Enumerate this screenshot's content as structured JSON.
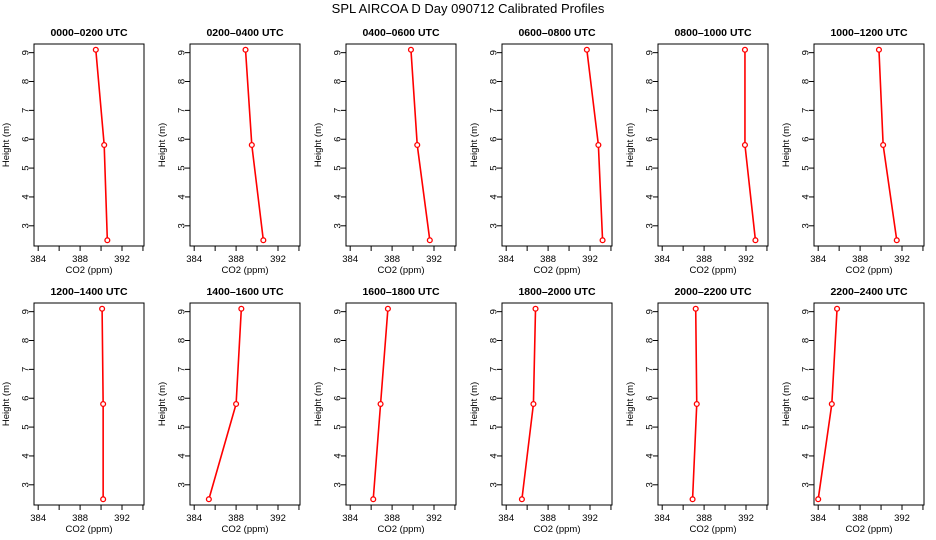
{
  "title": "SPL AIRCOA D  Day 090712  Calibrated Profiles",
  "chart_data": [
    {
      "type": "line",
      "title": "0000–0200 UTC",
      "x": [
        389.5,
        390.3,
        390.6
      ],
      "y": [
        9.1,
        5.8,
        2.5
      ]
    },
    {
      "type": "line",
      "title": "0200–0400 UTC",
      "x": [
        388.9,
        389.5,
        390.6
      ],
      "y": [
        9.1,
        5.8,
        2.5
      ]
    },
    {
      "type": "line",
      "title": "0400–0600 UTC",
      "x": [
        389.8,
        390.4,
        391.6
      ],
      "y": [
        9.1,
        5.8,
        2.5
      ]
    },
    {
      "type": "line",
      "title": "0600–0800 UTC",
      "x": [
        391.7,
        392.8,
        393.2
      ],
      "y": [
        9.1,
        5.8,
        2.5
      ]
    },
    {
      "type": "line",
      "title": "0800–1000 UTC",
      "x": [
        391.9,
        391.9,
        392.9
      ],
      "y": [
        9.1,
        5.8,
        2.5
      ]
    },
    {
      "type": "line",
      "title": "1000–1200 UTC",
      "x": [
        389.8,
        390.2,
        391.5
      ],
      "y": [
        9.1,
        5.8,
        2.5
      ]
    },
    {
      "type": "line",
      "title": "1200–1400 UTC",
      "x": [
        390.1,
        390.2,
        390.2
      ],
      "y": [
        9.1,
        5.8,
        2.5
      ]
    },
    {
      "type": "line",
      "title": "1400–1600 UTC",
      "x": [
        388.5,
        388.0,
        385.4
      ],
      "y": [
        9.1,
        5.8,
        2.5
      ]
    },
    {
      "type": "line",
      "title": "1600–1800 UTC",
      "x": [
        387.6,
        386.9,
        386.2
      ],
      "y": [
        9.1,
        5.8,
        2.5
      ]
    },
    {
      "type": "line",
      "title": "1800–2000 UTC",
      "x": [
        386.8,
        386.6,
        385.5
      ],
      "y": [
        9.1,
        5.8,
        2.5
      ]
    },
    {
      "type": "line",
      "title": "2000–2200 UTC",
      "x": [
        387.2,
        387.3,
        386.9
      ],
      "y": [
        9.1,
        5.8,
        2.5
      ]
    },
    {
      "type": "line",
      "title": "2200–2400 UTC",
      "x": [
        385.8,
        385.3,
        384.0
      ],
      "y": [
        9.1,
        5.8,
        2.5
      ]
    }
  ],
  "axes": {
    "xlabel": "CO2 (ppm)",
    "ylabel": "Height (m)",
    "xlim": [
      383.6,
      394.1
    ],
    "ylim": [
      2.3,
      9.3
    ],
    "xticks": [
      384,
      386,
      388,
      390,
      392,
      394
    ],
    "xticklabels": [
      "384",
      "388",
      "392"
    ],
    "yticks": [
      3,
      4,
      5,
      6,
      7,
      8,
      9
    ],
    "grid": false,
    "line_color": "#ff0000",
    "marker": "open-circle"
  }
}
